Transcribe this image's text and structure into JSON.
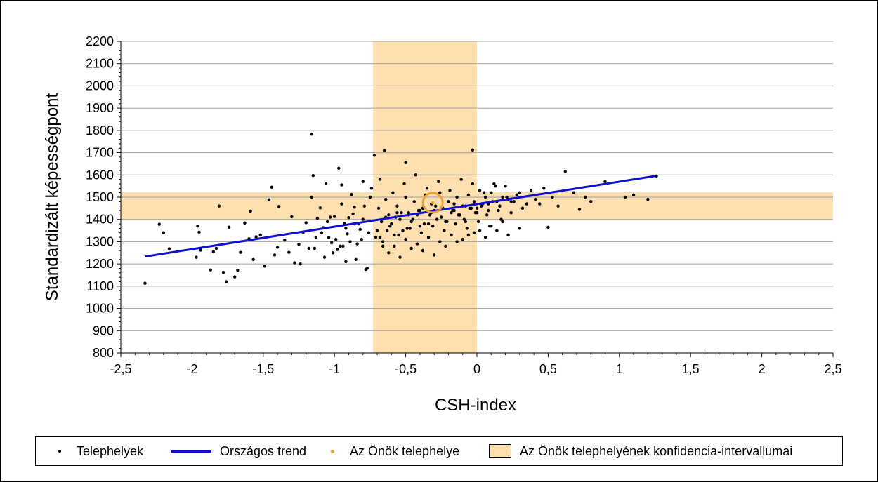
{
  "chart_data": {
    "type": "scatter",
    "xlabel": "CSH-index",
    "ylabel": "Standardizált képességpont",
    "xlim": [
      -2.5,
      2.5
    ],
    "ylim": [
      800,
      2200
    ],
    "xticks": [
      "-2,5",
      "-2",
      "-1,5",
      "-1",
      "-0,5",
      "0",
      "0,5",
      "1",
      "1,5",
      "2",
      "2,5"
    ],
    "xtick_values": [
      -2.5,
      -2,
      -1.5,
      -1,
      -0.5,
      0,
      0.5,
      1,
      1.5,
      2,
      2.5
    ],
    "yticks": [
      "800",
      "900",
      "1000",
      "1100",
      "1200",
      "1300",
      "1400",
      "1500",
      "1600",
      "1700",
      "1800",
      "1900",
      "2000",
      "2100",
      "2200"
    ],
    "ytick_values": [
      800,
      900,
      1000,
      1100,
      1200,
      1300,
      1400,
      1500,
      1600,
      1700,
      1800,
      1900,
      2000,
      2100,
      2200
    ],
    "grid": "horizontal",
    "legend_position": "bottom",
    "confidence_interval": {
      "x": [
        -0.73,
        0.0
      ],
      "y": [
        1395,
        1522
      ]
    },
    "trend": {
      "name": "Országos trend",
      "x": [
        -2.33,
        1.25
      ],
      "y": [
        1233,
        1595
      ],
      "color": "#1010d0"
    },
    "own_site": {
      "name": "Az Önök telephelye",
      "x": -0.31,
      "y": 1475,
      "color": "#f0a030"
    },
    "points": {
      "name": "Telephelyek",
      "x": [
        -2.33,
        -2.23,
        -2.2,
        -2.16,
        -1.97,
        -1.96,
        -1.95,
        -1.94,
        -1.87,
        -1.85,
        -1.83,
        -1.81,
        -1.78,
        -1.76,
        -1.74,
        -1.7,
        -1.68,
        -1.66,
        -1.63,
        -1.6,
        -1.59,
        -1.57,
        -1.55,
        -1.52,
        -1.49,
        -1.46,
        -1.44,
        -1.42,
        -1.4,
        -1.39,
        -1.35,
        -1.32,
        -1.3,
        -1.28,
        -1.25,
        -1.22,
        -1.2,
        -1.18,
        -1.16,
        -1.15,
        -1.13,
        -1.1,
        -1.08,
        -1.06,
        -1.04,
        -1.02,
        -1.0,
        -0.98,
        -0.97,
        -0.95,
        -0.93,
        -0.91,
        -0.9,
        -0.88,
        -0.86,
        -0.84,
        -0.82,
        -0.8,
        -0.78,
        -0.76,
        -1.16,
        -0.95,
        -0.72,
        -0.65,
        -0.5,
        -0.03,
        -1.12,
        -1.05,
        -0.99,
        -0.94,
        -0.87,
        -0.83,
        -0.79,
        -0.75,
        -0.7,
        -0.68,
        -0.66,
        -0.64,
        -0.62,
        -0.6,
        -0.58,
        -0.56,
        -0.54,
        -0.52,
        -0.5,
        -0.48,
        -0.46,
        -0.44,
        -0.42,
        -0.4,
        -0.38,
        -0.36,
        -0.34,
        -0.32,
        -0.3,
        -0.28,
        -0.26,
        -0.24,
        -0.22,
        -0.2,
        -0.18,
        -0.16,
        -0.14,
        -0.12,
        -0.1,
        -0.08,
        -0.06,
        -0.04,
        -0.02,
        0.0,
        0.02,
        0.04,
        0.06,
        0.08,
        0.1,
        0.12,
        0.14,
        0.16,
        0.18,
        0.2,
        0.22,
        0.24,
        0.26,
        0.28,
        0.3,
        0.32,
        0.35,
        0.38,
        0.41,
        0.44,
        0.47,
        0.5,
        0.53,
        0.57,
        0.62,
        0.68,
        0.72,
        0.76,
        0.8,
        0.9,
        1.04,
        1.1,
        1.2,
        1.26,
        -0.69,
        -0.67,
        -0.61,
        -0.57,
        -0.53,
        -0.49,
        -0.45,
        -0.41,
        -0.37,
        -0.33,
        -0.29,
        -0.25,
        -0.21,
        -0.17,
        -0.13,
        -0.09,
        -0.05,
        -0.01,
        0.03,
        0.07,
        0.11,
        0.15,
        -0.71,
        -0.63,
        -0.55,
        -0.47,
        -0.39,
        -0.31,
        -0.23,
        -0.15,
        -0.07,
        0.01,
        0.09,
        0.17,
        -0.74,
        -0.68,
        -0.59,
        -0.51,
        -0.43,
        -0.35,
        -0.27,
        -0.19,
        -0.11,
        -0.03,
        0.05,
        0.13,
        0.21,
        -0.66,
        -0.58,
        -0.5,
        -0.42,
        -0.34,
        -0.26,
        -0.18,
        -0.1,
        -0.02,
        0.06,
        0.14,
        0.22,
        0.3,
        -0.64,
        -0.56,
        -0.48,
        -0.4,
        -0.32,
        -0.24,
        -0.16,
        -0.08,
        0.0,
        0.08,
        0.16,
        0.24,
        -0.62,
        -0.54,
        -0.46,
        -0.38,
        -0.3,
        -0.22,
        -0.14,
        -0.06,
        0.02,
        0.1,
        0.18,
        -1.07,
        -1.01,
        -0.96,
        -0.92,
        -0.89,
        -0.85,
        -0.81,
        -0.77,
        -1.24,
        -1.14,
        -1.09,
        -1.03,
        -0.92,
        -0.86,
        -0.8
      ],
      "y": [
        1113,
        1378,
        1340,
        1268,
        1230,
        1370,
        1343,
        1262,
        1173,
        1255,
        1270,
        1460,
        1162,
        1120,
        1365,
        1142,
        1172,
        1252,
        1384,
        1313,
        1437,
        1220,
        1322,
        1330,
        1190,
        1488,
        1545,
        1240,
        1275,
        1458,
        1307,
        1252,
        1412,
        1205,
        1288,
        1342,
        1385,
        1270,
        1783,
        1597,
        1320,
        1452,
        1363,
        1560,
        1318,
        1295,
        1413,
        1265,
        1630,
        1555,
        1382,
        1335,
        1408,
        1512,
        1455,
        1290,
        1355,
        1570,
        1175,
        1340,
        1500,
        1470,
        1688,
        1710,
        1655,
        1712,
        1405,
        1390,
        1310,
        1280,
        1425,
        1380,
        1460,
        1500,
        1350,
        1320,
        1280,
        1490,
        1420,
        1380,
        1330,
        1460,
        1400,
        1350,
        1500,
        1430,
        1390,
        1480,
        1420,
        1370,
        1450,
        1510,
        1380,
        1470,
        1440,
        1400,
        1520,
        1450,
        1390,
        1480,
        1430,
        1470,
        1500,
        1420,
        1460,
        1390,
        1510,
        1450,
        1480,
        1430,
        1530,
        1470,
        1500,
        1440,
        1520,
        1560,
        1480,
        1460,
        1500,
        1550,
        1490,
        1430,
        1480,
        1510,
        1520,
        1450,
        1470,
        1530,
        1490,
        1470,
        1540,
        1365,
        1500,
        1460,
        1615,
        1520,
        1445,
        1500,
        1480,
        1570,
        1500,
        1510,
        1490,
        1595,
        1450,
        1390,
        1370,
        1410,
        1430,
        1360,
        1400,
        1440,
        1380,
        1420,
        1460,
        1410,
        1390,
        1440,
        1420,
        1400,
        1450,
        1430,
        1460,
        1420,
        1480,
        1440,
        1320,
        1350,
        1330,
        1360,
        1340,
        1370,
        1350,
        1380,
        1360,
        1390,
        1370,
        1400,
        1540,
        1580,
        1520,
        1560,
        1600,
        1540,
        1570,
        1530,
        1580,
        1560,
        1520,
        1550,
        1500,
        1300,
        1280,
        1310,
        1290,
        1320,
        1300,
        1330,
        1310,
        1340,
        1320,
        1350,
        1330,
        1360,
        1410,
        1430,
        1420,
        1440,
        1430,
        1450,
        1440,
        1460,
        1450,
        1470,
        1460,
        1480,
        1250,
        1230,
        1270,
        1260,
        1240,
        1280,
        1300,
        1330,
        1350,
        1370,
        1390,
        1230,
        1250,
        1280,
        1210,
        1300,
        1220,
        1310,
        1180,
        1200,
        1270,
        1340,
        1410,
        1360,
        1380,
        1400
      ]
    }
  },
  "legend": {
    "points_label": "Telephelyek",
    "trend_label": "Országos trend",
    "own_site_label": "Az Önök telephelye",
    "ci_label": "Az Önök telephelyének konfidencia-intervallumai"
  },
  "colors": {
    "ci_fill": "#fddfb0",
    "trend": "#1010d0",
    "own_site": "#f0a030",
    "points": "#000000",
    "grid": "#a0a0a0"
  }
}
